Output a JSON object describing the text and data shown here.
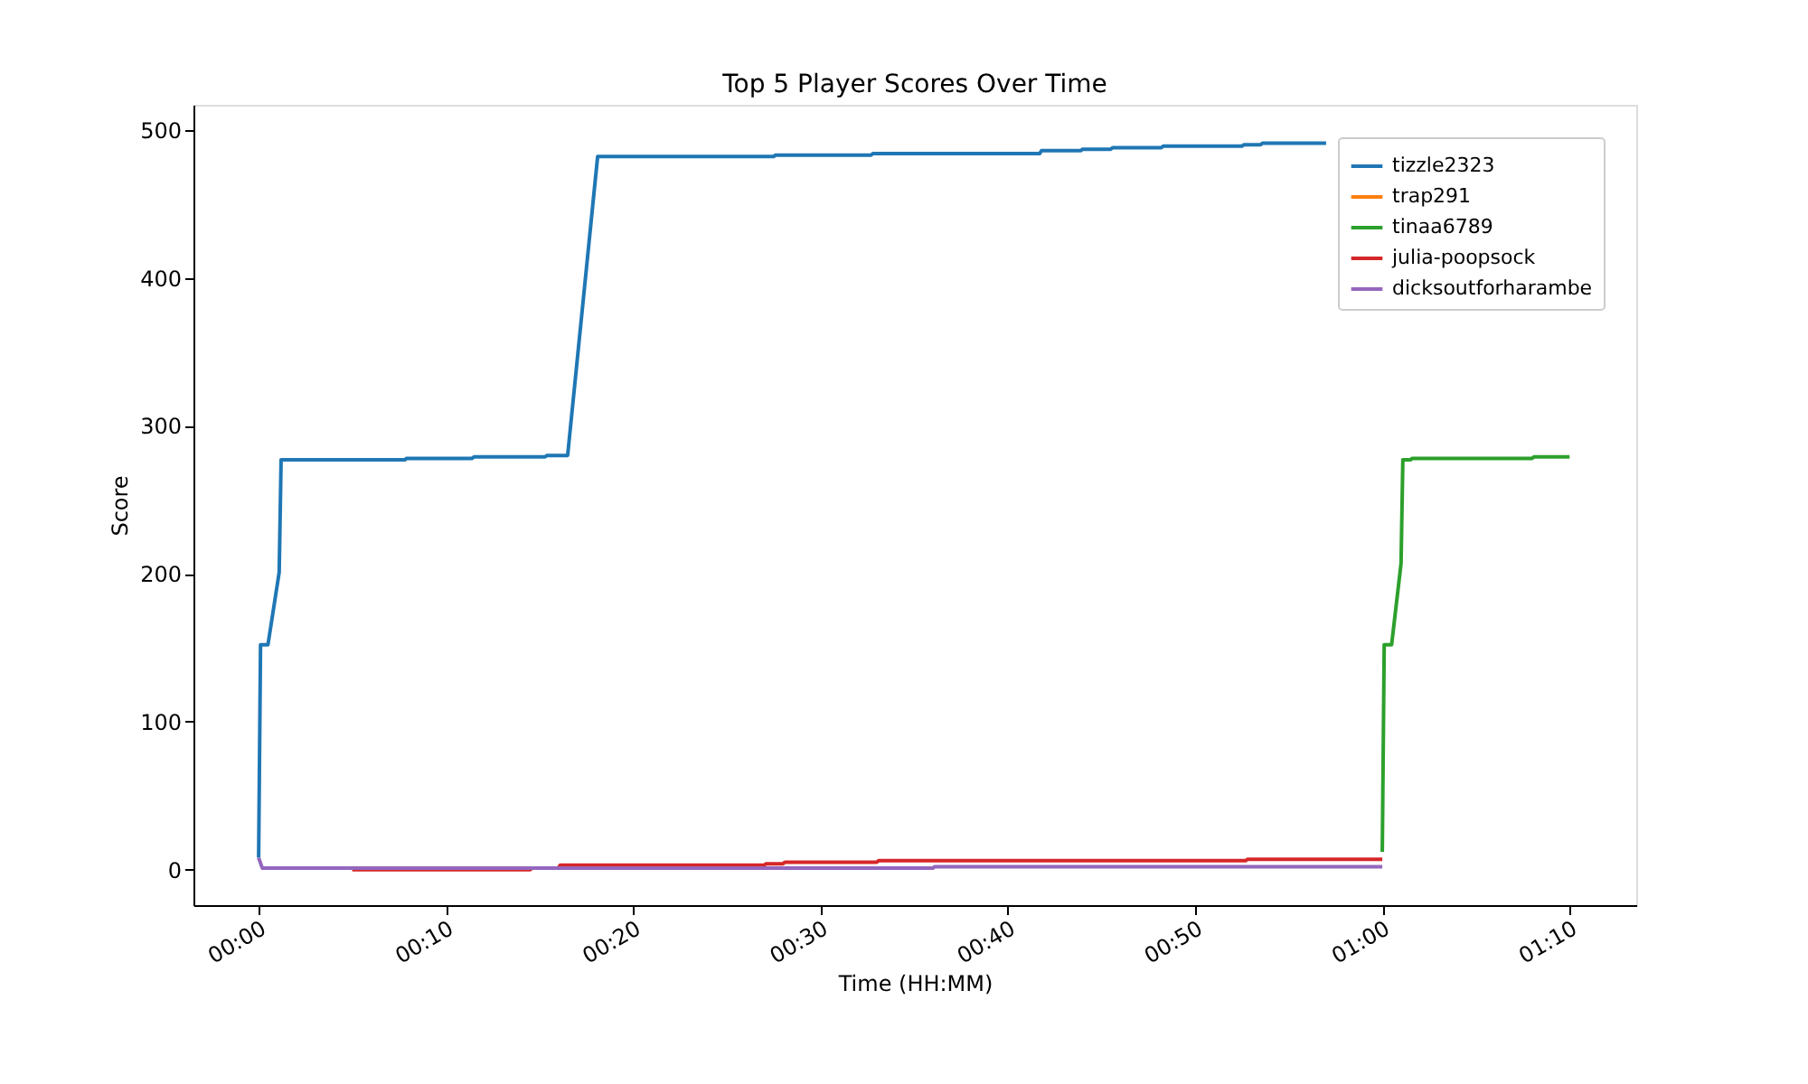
{
  "chart_data": {
    "type": "line",
    "title": "Top 5 Player Scores Over Time",
    "xlabel": "Time (HH:MM)",
    "ylabel": "Score",
    "xlim": [
      -0.058,
      1.226
    ],
    "ylim": [
      -24,
      517
    ],
    "xticks": [
      {
        "value": 0,
        "label": "00:00"
      },
      {
        "value": 0.1667,
        "label": "00:10"
      },
      {
        "value": 0.3333,
        "label": "00:20"
      },
      {
        "value": 0.5,
        "label": "00:30"
      },
      {
        "value": 0.6667,
        "label": "00:40"
      },
      {
        "value": 0.8333,
        "label": "00:50"
      },
      {
        "value": 1,
        "label": "01:00"
      },
      {
        "value": 1.1667,
        "label": "01:10"
      }
    ],
    "yticks": [
      0,
      100,
      200,
      300,
      400,
      500
    ],
    "grid": false,
    "legend": "top right",
    "marker": "none",
    "line_style": "solid",
    "series": [
      {
        "name": "tizzle2323",
        "color": "#1f77b4",
        "x": [
          0,
          0.0017,
          0.0083,
          0.0183,
          0.02,
          0.13,
          0.1317,
          0.19,
          0.1917,
          0.255,
          0.2567,
          0.275,
          0.3017,
          0.4583,
          0.46,
          0.545,
          0.5467,
          0.695,
          0.6967,
          0.7317,
          0.7333,
          0.7583,
          0.76,
          0.8033,
          0.805,
          0.875,
          0.8767,
          0.8917,
          0.8933,
          0.95
        ],
        "values": [
          8,
          152,
          152,
          201,
          277,
          277,
          278,
          278,
          279,
          279,
          280,
          280,
          482,
          482,
          483,
          483,
          484,
          484,
          486,
          486,
          487,
          487,
          488,
          488,
          489,
          489,
          490,
          490,
          491,
          491
        ]
      },
      {
        "name": "trap291",
        "color": "#ff7f0e"
      },
      {
        "name": "tinaa6789",
        "color": "#2ca02c",
        "x": [
          1.0,
          1.0017,
          1.0083,
          1.0167,
          1.0183,
          1.025,
          1.0267,
          1.1333,
          1.135,
          1.1667
        ],
        "values": [
          12,
          152,
          152,
          207,
          277,
          277,
          278,
          278,
          279,
          279
        ]
      },
      {
        "name": "julia-poopsock",
        "color": "#d62728",
        "x": [
          0.0833,
          0.2417,
          0.2433,
          0.2667,
          0.2683,
          0.45,
          0.4517,
          0.4667,
          0.4683,
          0.55,
          0.5517,
          0.8783,
          0.88,
          1.0
        ],
        "values": [
          0,
          0,
          1,
          1,
          3,
          3,
          4,
          4,
          5,
          5,
          6,
          6,
          7,
          7
        ]
      },
      {
        "name": "dicksoutforharambe",
        "color": "#9467bd",
        "x": [
          0,
          0.0033,
          0.6,
          0.6017,
          1.0
        ],
        "values": [
          8,
          1,
          1,
          2,
          2
        ]
      }
    ]
  }
}
